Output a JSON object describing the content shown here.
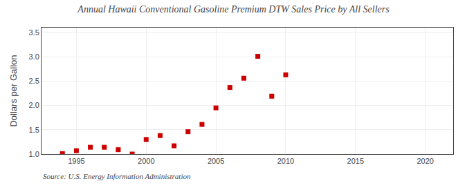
{
  "chart_data": {
    "type": "scatter",
    "title": "Annual Hawaii Conventional Gasoline Premium DTW Sales Price by All Sellers",
    "ylabel": "Dollars per Gallon",
    "annotations": [
      "Source: U.S. Energy Information Administration"
    ],
    "x": [
      1994,
      1995,
      1996,
      1997,
      1998,
      1999,
      2000,
      2001,
      2002,
      2003,
      2004,
      2005,
      2006,
      2007,
      2008,
      2009,
      2010
    ],
    "values": [
      1.01,
      1.07,
      1.14,
      1.14,
      1.09,
      1.0,
      1.3,
      1.38,
      1.17,
      1.46,
      1.61,
      1.95,
      2.37,
      2.56,
      3.01,
      2.19,
      2.63
    ],
    "color": "#cc0000",
    "marker": "square",
    "xlim": [
      1992.5,
      2022
    ],
    "ylim": [
      1.0,
      3.6
    ],
    "xticks": [
      1995,
      2000,
      2005,
      2010,
      2015,
      2020
    ],
    "yticks": [
      {
        "value": 1.0,
        "label": "1.0"
      },
      1.5,
      {
        "value": 2.0,
        "label": "2.0"
      },
      2.5,
      {
        "value": 3.0,
        "label": "3.0"
      },
      3.5
    ],
    "grid": true
  }
}
